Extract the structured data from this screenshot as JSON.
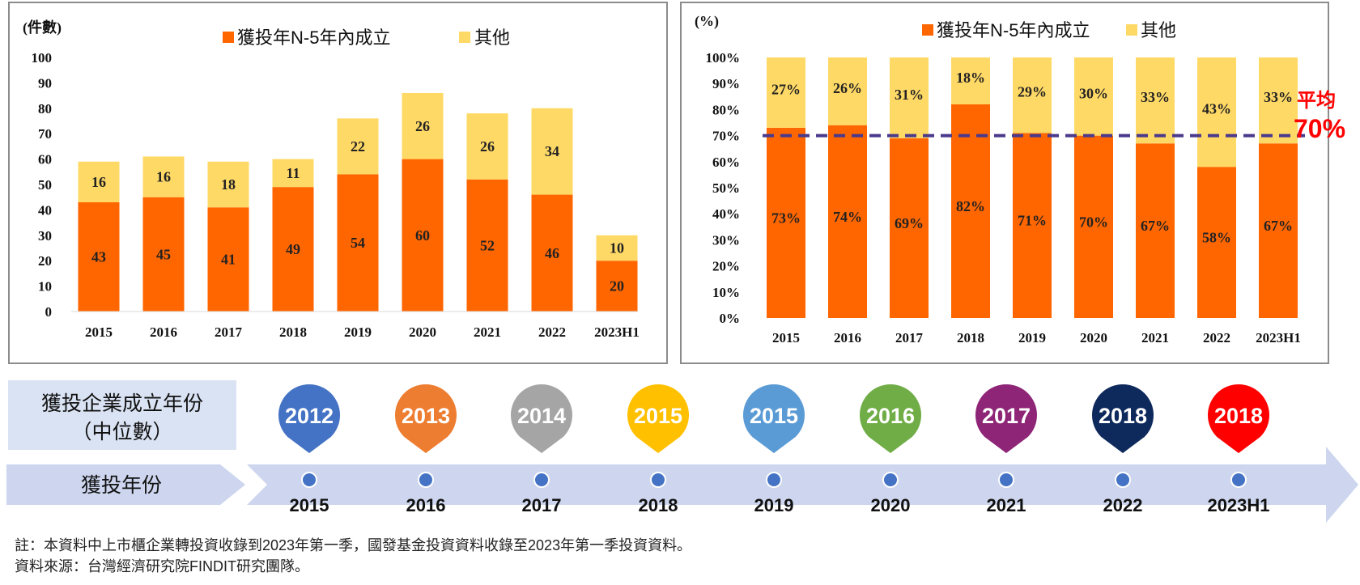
{
  "chart_data": [
    {
      "type": "bar",
      "stacked": true,
      "unit_label": "(件數)",
      "categories": [
        "2015",
        "2016",
        "2017",
        "2018",
        "2019",
        "2020",
        "2021",
        "2022",
        "2023H1"
      ],
      "series": [
        {
          "name": "獲投年N-5年內成立",
          "color": "#ff6600",
          "values": [
            43,
            45,
            41,
            49,
            54,
            60,
            52,
            46,
            20
          ]
        },
        {
          "name": "其他",
          "color": "#ffd966",
          "values": [
            16,
            16,
            18,
            11,
            22,
            26,
            26,
            34,
            10
          ]
        }
      ],
      "ylim": [
        0,
        100
      ],
      "yticks": [
        0,
        10,
        20,
        30,
        40,
        50,
        60,
        70,
        80,
        90,
        100
      ],
      "legend_position": "top",
      "grid": false
    },
    {
      "type": "bar",
      "stacked": true,
      "percent": true,
      "unit_label": "(%)",
      "categories": [
        "2015",
        "2016",
        "2017",
        "2018",
        "2019",
        "2020",
        "2021",
        "2022",
        "2023H1"
      ],
      "series": [
        {
          "name": "獲投年N-5年內成立",
          "color": "#ff6600",
          "values": [
            73,
            74,
            69,
            82,
            71,
            70,
            67,
            58,
            67
          ]
        },
        {
          "name": "其他",
          "color": "#ffd966",
          "values": [
            27,
            26,
            31,
            18,
            29,
            30,
            33,
            43,
            33
          ]
        }
      ],
      "ylim": [
        0,
        100
      ],
      "yticks": [
        "0%",
        "10%",
        "20%",
        "30%",
        "40%",
        "50%",
        "60%",
        "70%",
        "80%",
        "90%",
        "100%"
      ],
      "average": {
        "label": "平均",
        "value_label": "70%",
        "value": 70,
        "color": "#4b3a8c"
      },
      "legend_position": "top",
      "grid": false
    }
  ],
  "timeline": {
    "median_label_line1": "獲投企業成立年份",
    "median_label_line2": "（中位數）",
    "year_label": "獲投年份",
    "items": [
      {
        "year": "2015",
        "median": "2012",
        "color": "#4472c4"
      },
      {
        "year": "2016",
        "median": "2013",
        "color": "#ed7d31"
      },
      {
        "year": "2017",
        "median": "2014",
        "color": "#a5a5a5"
      },
      {
        "year": "2018",
        "median": "2015",
        "color": "#ffc000"
      },
      {
        "year": "2019",
        "median": "2015",
        "color": "#5b9bd5"
      },
      {
        "year": "2020",
        "median": "2016",
        "color": "#70ad47"
      },
      {
        "year": "2021",
        "median": "2017",
        "color": "#8e2577"
      },
      {
        "year": "2022",
        "median": "2018",
        "color": "#0e2a5c"
      },
      {
        "year": "2023H1",
        "median": "2018",
        "color": "#ff0000"
      }
    ]
  },
  "notes": {
    "note1": "註：本資料中上市櫃企業轉投資收錄到2023年第一季，國發基金投資資料收錄至2023年第一季投資資料。",
    "note2": "資料來源：台灣經濟研究院FINDIT研究團隊。"
  }
}
